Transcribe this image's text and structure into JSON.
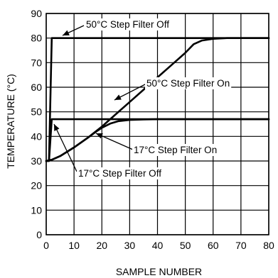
{
  "chart_data": {
    "type": "line",
    "xlabel": "SAMPLE NUMBER",
    "ylabel": "TEMPERATURE (°C)",
    "xlim": [
      0,
      80
    ],
    "ylim": [
      0,
      90
    ],
    "xticks": [
      "0",
      "10",
      "20",
      "30",
      "40",
      "50",
      "60",
      "70",
      "80"
    ],
    "yticks": [
      "0",
      "10",
      "20",
      "30",
      "40",
      "50",
      "60",
      "70",
      "80",
      "90"
    ],
    "grid": true,
    "series": [
      {
        "name": "50°C Step Filter Off",
        "x": [
          0,
          1,
          2,
          80
        ],
        "y": [
          30,
          30,
          80,
          80
        ]
      },
      {
        "name": "17°C Step Filter Off",
        "x": [
          0,
          1,
          2,
          80
        ],
        "y": [
          30,
          30,
          47,
          47
        ]
      },
      {
        "name": "50°C Step Filter On",
        "x": [
          0,
          2,
          5,
          10,
          15,
          20,
          25,
          30,
          35,
          40,
          45,
          50,
          53,
          56,
          60,
          65,
          70,
          80
        ],
        "y": [
          30,
          30.5,
          32,
          35.5,
          39.5,
          44,
          49,
          54,
          59,
          64,
          69,
          74,
          77.5,
          79,
          79.7,
          80,
          80,
          80
        ]
      },
      {
        "name": "17°C Step Filter On",
        "x": [
          0,
          2,
          5,
          10,
          15,
          18,
          20,
          23,
          26,
          30,
          35,
          40,
          50,
          80
        ],
        "y": [
          30,
          30.5,
          32,
          35.5,
          39.5,
          42,
          43.5,
          45.2,
          46.2,
          46.7,
          46.9,
          47,
          47,
          47
        ]
      }
    ],
    "annotations": [
      {
        "text": "50°C Step Filter Off",
        "series": 0
      },
      {
        "text": "50°C Step Filter On",
        "series": 2
      },
      {
        "text": "17°C Step Filter On",
        "series": 3
      },
      {
        "text": "17°C Step Filter Off",
        "series": 1
      }
    ]
  }
}
